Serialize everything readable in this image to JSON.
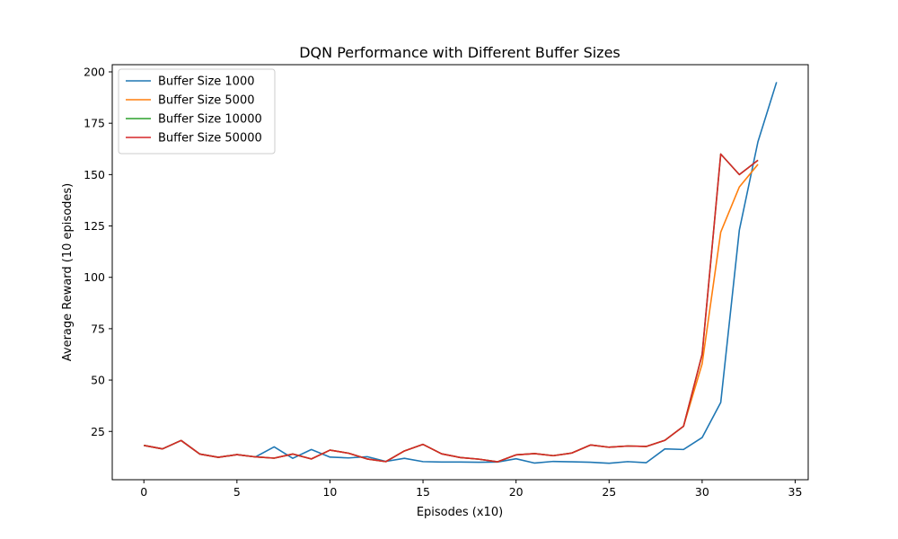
{
  "chart_data": {
    "type": "line",
    "title": "DQN Performance with Different Buffer Sizes",
    "xlabel": "Episodes (x10)",
    "ylabel": "Average Reward (10 episodes)",
    "xlim": [
      -1.7,
      35.7
    ],
    "ylim": [
      1.5,
      203.5
    ],
    "xticks": [
      0,
      5,
      10,
      15,
      20,
      25,
      30,
      35
    ],
    "yticks": [
      25,
      50,
      75,
      100,
      125,
      150,
      175,
      200
    ],
    "legend_position": "upper-left",
    "grid": false,
    "series": [
      {
        "name": "Buffer Size 1000",
        "color": "#1f77b4",
        "x": [
          0,
          1,
          2,
          3,
          4,
          5,
          6,
          7,
          8,
          9,
          10,
          11,
          12,
          13,
          14,
          15,
          16,
          17,
          18,
          19,
          20,
          21,
          22,
          23,
          24,
          25,
          26,
          27,
          28,
          29,
          30,
          31,
          32,
          33,
          34
        ],
        "values": [
          18.2,
          16.5,
          20.6,
          14.0,
          12.4,
          13.7,
          12.6,
          17.5,
          11.9,
          16.2,
          12.5,
          12.1,
          12.7,
          10.4,
          11.9,
          10.3,
          10.1,
          10.1,
          10.0,
          10.1,
          11.7,
          9.6,
          10.4,
          10.2,
          10.0,
          9.5,
          10.3,
          9.8,
          16.5,
          16.2,
          22.0,
          39.1,
          123.0,
          166.0,
          195.0
        ]
      },
      {
        "name": "Buffer Size 5000",
        "color": "#ff7f0e",
        "x": [
          0,
          1,
          2,
          3,
          4,
          5,
          6,
          7,
          8,
          9,
          10,
          11,
          12,
          13,
          14,
          15,
          16,
          17,
          18,
          19,
          20,
          21,
          22,
          23,
          24,
          25,
          26,
          27,
          28,
          29,
          30,
          31,
          32,
          33
        ],
        "values": [
          18.2,
          16.5,
          20.6,
          14.0,
          12.4,
          13.7,
          12.6,
          12.0,
          14.0,
          11.6,
          15.9,
          14.4,
          11.6,
          10.3,
          15.5,
          18.7,
          14.1,
          12.3,
          11.5,
          10.2,
          13.6,
          14.2,
          13.2,
          14.5,
          18.4,
          17.3,
          17.9,
          17.7,
          20.7,
          27.5,
          57.9,
          122.0,
          144.0,
          155.0
        ]
      },
      {
        "name": "Buffer Size 10000",
        "color": "#2ca02c",
        "x": [
          0,
          1,
          2,
          3,
          4,
          5,
          6,
          7,
          8,
          9,
          10,
          11,
          12,
          13,
          14,
          15,
          16,
          17,
          18,
          19,
          20,
          21,
          22,
          23,
          24,
          25,
          26,
          27,
          28,
          29,
          30,
          31,
          32,
          33
        ],
        "values": [
          18.2,
          16.5,
          20.6,
          14.0,
          12.4,
          13.7,
          12.6,
          12.0,
          14.0,
          11.6,
          15.9,
          14.4,
          11.6,
          10.3,
          15.5,
          18.7,
          14.1,
          12.3,
          11.5,
          10.2,
          13.6,
          14.2,
          13.2,
          14.5,
          18.4,
          17.3,
          17.9,
          17.7,
          20.7,
          27.5,
          62.5,
          160.0,
          150.0,
          157.0
        ]
      },
      {
        "name": "Buffer Size 50000",
        "color": "#d62728",
        "x": [
          0,
          1,
          2,
          3,
          4,
          5,
          6,
          7,
          8,
          9,
          10,
          11,
          12,
          13,
          14,
          15,
          16,
          17,
          18,
          19,
          20,
          21,
          22,
          23,
          24,
          25,
          26,
          27,
          28,
          29,
          30,
          31,
          32,
          33
        ],
        "values": [
          18.2,
          16.5,
          20.6,
          14.0,
          12.4,
          13.7,
          12.6,
          12.0,
          14.0,
          11.6,
          15.9,
          14.4,
          11.6,
          10.3,
          15.5,
          18.7,
          14.1,
          12.3,
          11.5,
          10.2,
          13.6,
          14.2,
          13.2,
          14.5,
          18.4,
          17.3,
          17.9,
          17.7,
          20.7,
          27.5,
          62.5,
          160.0,
          150.0,
          157.0
        ]
      }
    ]
  }
}
